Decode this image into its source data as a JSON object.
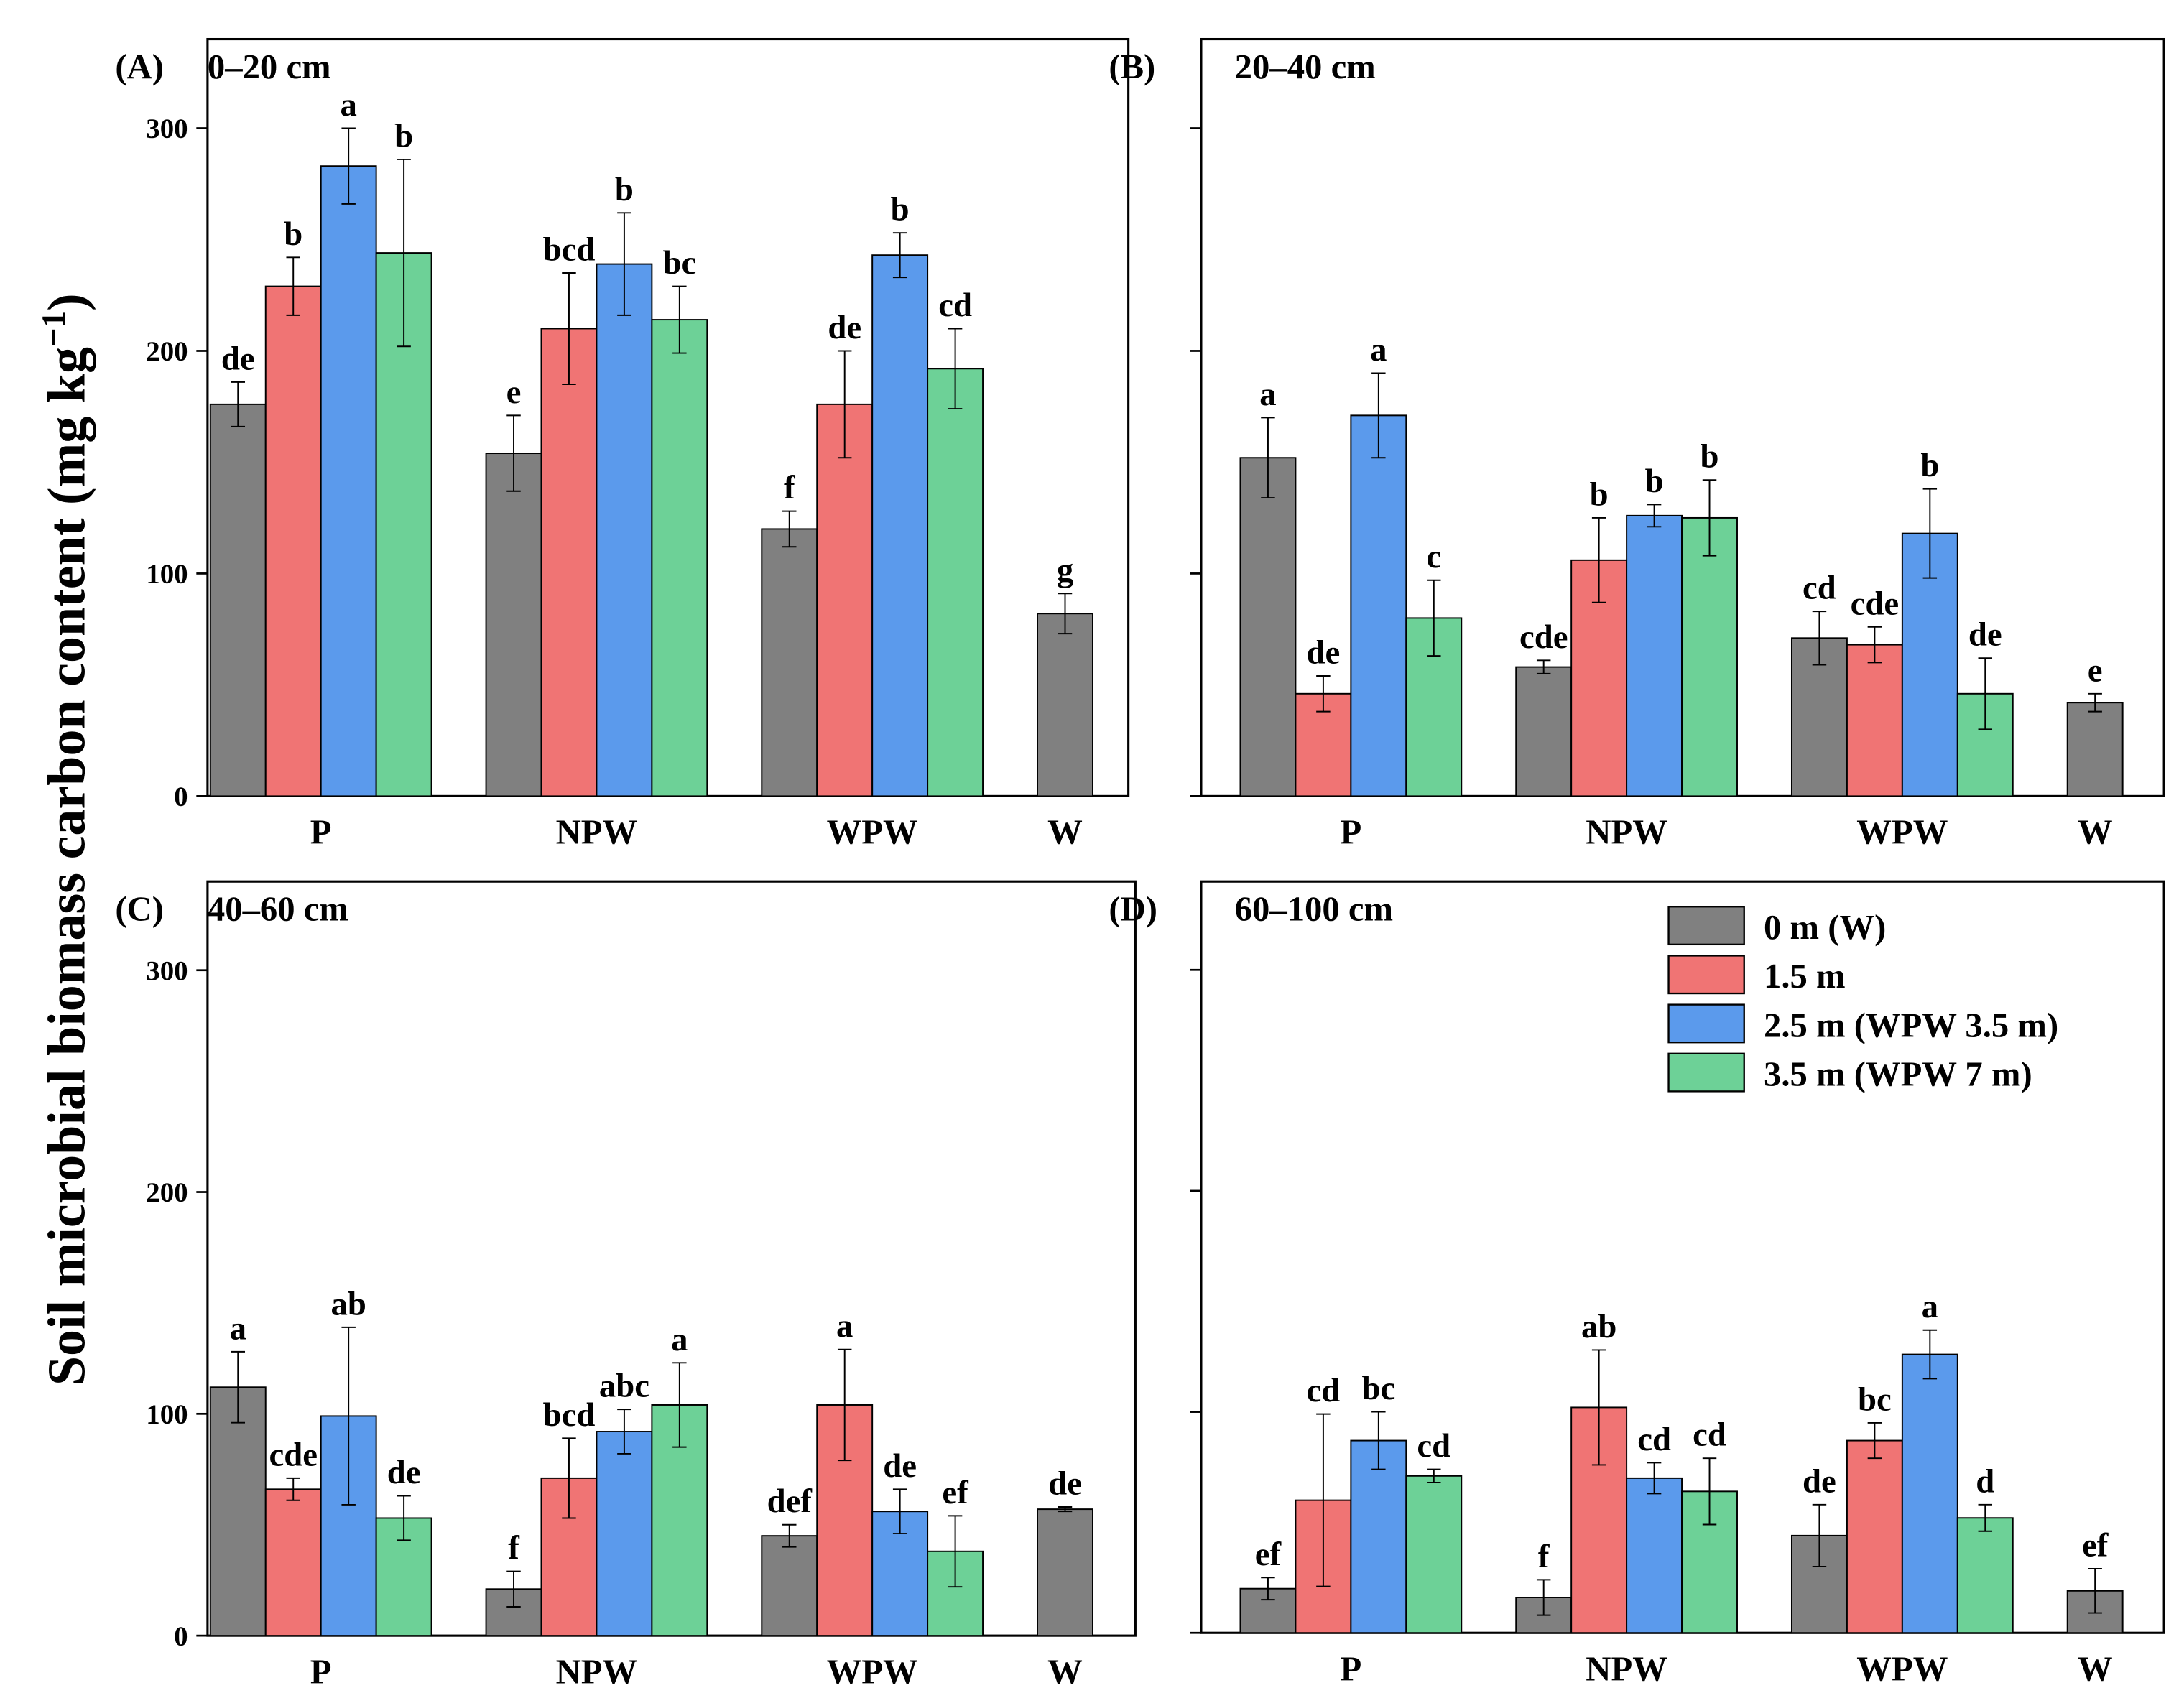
{
  "chart_data": [
    {
      "type": "bar",
      "panel_label": "(A)",
      "title": "0–20 cm",
      "categories": [
        "P",
        "NPW",
        "WPW",
        "W"
      ],
      "ylim": [
        0,
        340
      ],
      "yticks": [
        0,
        100,
        200,
        300
      ],
      "series": [
        {
          "name": "0 m (W)",
          "values": [
            176,
            154,
            120,
            82
          ],
          "errors": [
            10,
            17,
            8,
            9
          ],
          "letters": [
            "de",
            "e",
            "f",
            "g"
          ]
        },
        {
          "name": "1.5 m",
          "values": [
            229,
            210,
            176,
            null
          ],
          "errors": [
            13,
            25,
            24,
            null
          ],
          "letters": [
            "b",
            "bcd",
            "de",
            null
          ]
        },
        {
          "name": "2.5 m (WPW 3.5 m)",
          "values": [
            283,
            239,
            243,
            null
          ],
          "errors": [
            17,
            23,
            10,
            null
          ],
          "letters": [
            "a",
            "b",
            "b",
            null
          ]
        },
        {
          "name": "3.5 m (WPW 7 m)",
          "values": [
            244,
            214,
            192,
            null
          ],
          "errors": [
            42,
            15,
            18,
            null
          ],
          "letters": [
            "b",
            "bc",
            "cd",
            null
          ]
        }
      ]
    },
    {
      "type": "bar",
      "panel_label": "(B)",
      "title": "20–40 cm",
      "categories": [
        "P",
        "NPW",
        "WPW",
        "W"
      ],
      "ylim": [
        0,
        340
      ],
      "yticks": [
        0,
        100,
        200,
        300
      ],
      "series": [
        {
          "name": "0 m (W)",
          "values": [
            152,
            58,
            71,
            42
          ],
          "errors": [
            18,
            3,
            12,
            4
          ],
          "letters": [
            "a",
            "cde",
            "cd",
            "e"
          ]
        },
        {
          "name": "1.5 m",
          "values": [
            46,
            106,
            68,
            null
          ],
          "errors": [
            8,
            19,
            8,
            null
          ],
          "letters": [
            "de",
            "b",
            "cde",
            null
          ]
        },
        {
          "name": "2.5 m (WPW 3.5 m)",
          "values": [
            171,
            126,
            118,
            null
          ],
          "errors": [
            19,
            5,
            20,
            null
          ],
          "letters": [
            "a",
            "b",
            "b",
            null
          ]
        },
        {
          "name": "3.5 m (WPW 7 m)",
          "values": [
            80,
            125,
            46,
            null
          ],
          "errors": [
            17,
            17,
            16,
            null
          ],
          "letters": [
            "c",
            "b",
            "de",
            null
          ]
        }
      ]
    },
    {
      "type": "bar",
      "panel_label": "(C)",
      "title": "40–60 cm",
      "categories": [
        "P",
        "NPW",
        "WPW",
        "W"
      ],
      "ylim": [
        0,
        340
      ],
      "yticks": [
        0,
        100,
        200,
        300
      ],
      "series": [
        {
          "name": "0 m (W)",
          "values": [
            112,
            21,
            45,
            57
          ],
          "errors": [
            16,
            8,
            5,
            1
          ],
          "letters": [
            "a",
            "f",
            "def",
            "de"
          ]
        },
        {
          "name": "1.5 m",
          "values": [
            66,
            71,
            104,
            null
          ],
          "errors": [
            5,
            18,
            25,
            null
          ],
          "letters": [
            "cde",
            "bcd",
            "a",
            null
          ]
        },
        {
          "name": "2.5 m (WPW 3.5 m)",
          "values": [
            99,
            92,
            56,
            null
          ],
          "errors": [
            40,
            10,
            10,
            null
          ],
          "letters": [
            "ab",
            "abc",
            "de",
            null
          ]
        },
        {
          "name": "3.5 m (WPW 7 m)",
          "values": [
            53,
            104,
            38,
            null
          ],
          "errors": [
            10,
            19,
            16,
            null
          ],
          "letters": [
            "de",
            "a",
            "ef",
            null
          ]
        }
      ]
    },
    {
      "type": "bar",
      "panel_label": "(D)",
      "title": "60–100 cm",
      "categories": [
        "P",
        "NPW",
        "WPW",
        "W"
      ],
      "ylim": [
        0,
        340
      ],
      "yticks": [
        0,
        100,
        200,
        300
      ],
      "series": [
        {
          "name": "0 m (W)",
          "values": [
            20,
            16,
            44,
            19
          ],
          "errors": [
            5,
            8,
            14,
            10
          ],
          "letters": [
            "ef",
            "f",
            "de",
            "ef"
          ]
        },
        {
          "name": "1.5 m",
          "values": [
            60,
            102,
            87,
            null
          ],
          "errors": [
            39,
            26,
            8,
            null
          ],
          "letters": [
            "cd",
            "ab",
            "bc",
            null
          ]
        },
        {
          "name": "2.5 m (WPW 3.5 m)",
          "values": [
            87,
            70,
            126,
            null
          ],
          "errors": [
            13,
            7,
            11,
            null
          ],
          "letters": [
            "bc",
            "cd",
            "a",
            null
          ]
        },
        {
          "name": "3.5 m (WPW 7 m)",
          "values": [
            71,
            64,
            52,
            null
          ],
          "errors": [
            3,
            15,
            6,
            null
          ],
          "letters": [
            "cd",
            "cd",
            "d",
            null
          ]
        }
      ]
    }
  ],
  "ylabel": "Soil microbial biomass carbon content (mg kg",
  "ylabel_sup": "−1",
  "ylabel_end": ")",
  "legend": {
    "placement": "top-right of panel D",
    "entries": [
      "0 m (W)",
      "1.5 m",
      "2.5 m (WPW 3.5 m)",
      "3.5 m (WPW 7 m)"
    ]
  },
  "colors": [
    "#808080",
    "#f07474",
    "#5b9aec",
    "#6dd197"
  ]
}
